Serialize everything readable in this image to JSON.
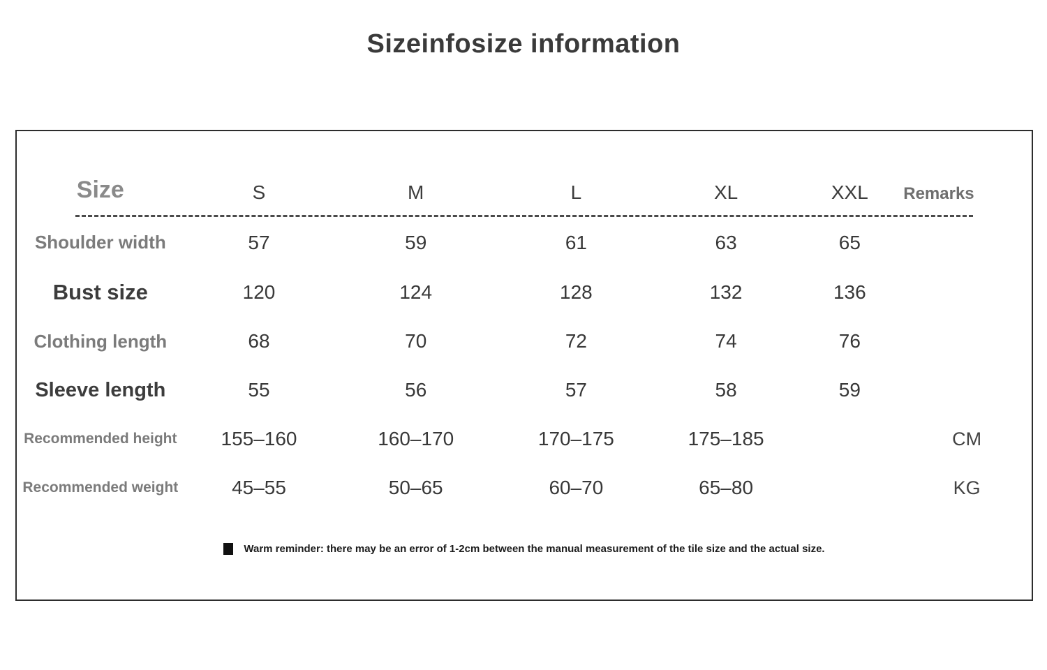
{
  "title": "Sizeinfosize information",
  "table": {
    "header": {
      "size_label": "Size",
      "columns": [
        "S",
        "M",
        "L",
        "XL",
        "XXL"
      ],
      "remarks_label": "Remarks"
    },
    "rows": [
      {
        "label": "Shoulder width",
        "values": [
          "57",
          "59",
          "61",
          "63",
          "65"
        ],
        "remark": ""
      },
      {
        "label": "Bust size",
        "values": [
          "120",
          "124",
          "128",
          "132",
          "136"
        ],
        "remark": ""
      },
      {
        "label": "Clothing length",
        "values": [
          "68",
          "70",
          "72",
          "74",
          "76"
        ],
        "remark": ""
      },
      {
        "label": "Sleeve length",
        "values": [
          "55",
          "56",
          "57",
          "58",
          "59"
        ],
        "remark": ""
      },
      {
        "label": "Recommended height",
        "values": [
          "155–160",
          "160–170",
          "170–175",
          "175–185",
          ""
        ],
        "remark": "CM"
      },
      {
        "label": "Recommended weight",
        "values": [
          "45–55",
          "50–65",
          "60–70",
          "65–80",
          ""
        ],
        "remark": "KG"
      }
    ],
    "footnote": "Warm reminder: there may be an error of 1-2cm between the manual measurement of the tile size and the actual size."
  },
  "colors": {
    "title_text": "#3a3a3a",
    "gray_label": "#7b7b7b",
    "dark_label": "#3c3c3c",
    "value_text": "#383838",
    "border": "#2d2d2d"
  },
  "chart_data": {
    "type": "table",
    "title": "Sizeinfosize information",
    "columns": [
      "Size",
      "S",
      "M",
      "L",
      "XL",
      "XXL",
      "Remarks"
    ],
    "rows": [
      [
        "Shoulder width",
        "57",
        "59",
        "61",
        "63",
        "65",
        ""
      ],
      [
        "Bust size",
        "120",
        "124",
        "128",
        "132",
        "136",
        ""
      ],
      [
        "Clothing length",
        "68",
        "70",
        "72",
        "74",
        "76",
        ""
      ],
      [
        "Sleeve length",
        "55",
        "56",
        "57",
        "58",
        "59",
        ""
      ],
      [
        "Recommended height",
        "155–160",
        "160–170",
        "170–175",
        "175–185",
        "",
        "CM"
      ],
      [
        "Recommended weight",
        "45–55",
        "50–65",
        "60–70",
        "65–80",
        "",
        "KG"
      ]
    ]
  }
}
